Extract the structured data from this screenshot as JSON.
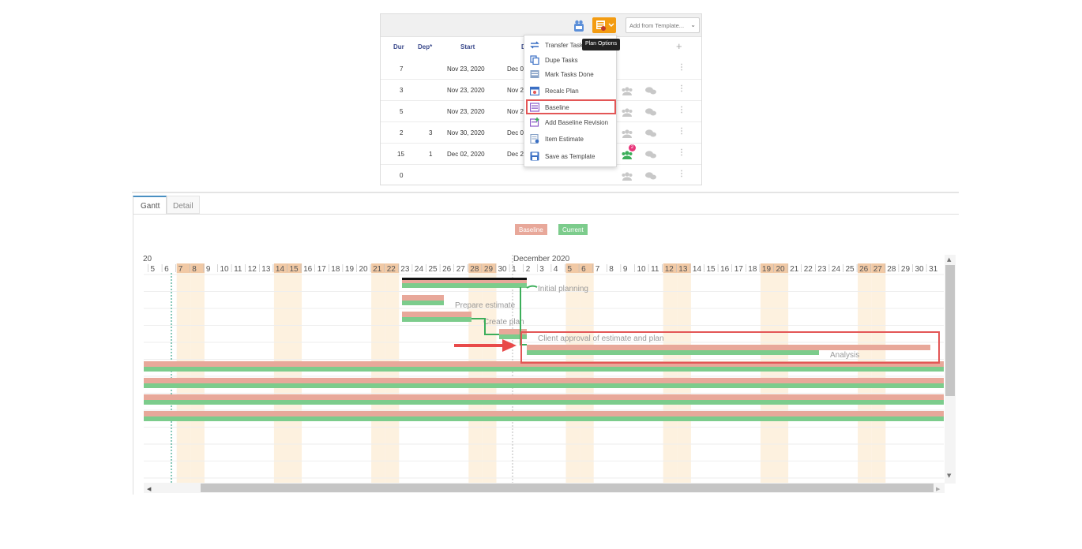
{
  "toolbar": {
    "template_placeholder": "Add from Template...",
    "tooltip": "Plan Options",
    "plan_button_color": "#f39c12"
  },
  "task_table": {
    "headers": [
      "Dur",
      "Dep*",
      "Start",
      "D"
    ],
    "add_icon": "plus-icon",
    "rows": [
      {
        "dur": "7",
        "dep": "",
        "start": "Nov 23, 2020",
        "end": "Dec 0",
        "people_badge": ""
      },
      {
        "dur": "3",
        "dep": "",
        "start": "Nov 23, 2020",
        "end": "Nov 2",
        "people_badge": ""
      },
      {
        "dur": "5",
        "dep": "",
        "start": "Nov 23, 2020",
        "end": "Nov 2",
        "people_badge": ""
      },
      {
        "dur": "2",
        "dep": "3",
        "start": "Nov 30, 2020",
        "end": "Dec 0",
        "people_badge": ""
      },
      {
        "dur": "15",
        "dep": "1",
        "start": "Dec 02, 2020",
        "end": "Dec 2",
        "people_badge": "2"
      },
      {
        "dur": "0",
        "dep": "",
        "start": "",
        "end": "",
        "people_badge": ""
      }
    ]
  },
  "plan_menu": {
    "items": [
      {
        "label": "Transfer Tasks",
        "icon": "transfer-icon"
      },
      {
        "label": "Dupe Tasks",
        "icon": "copy-icon"
      },
      {
        "label": "Mark Tasks Done",
        "icon": "check-list-icon"
      },
      {
        "label": "Recalc Plan",
        "icon": "calendar-icon"
      },
      {
        "label": "Baseline",
        "icon": "baseline-icon"
      },
      {
        "label": "Add Baseline Revision",
        "icon": "add-baseline-icon"
      },
      {
        "label": "Item Estimate",
        "icon": "estimate-icon"
      },
      {
        "label": "Save as Template",
        "icon": "save-icon"
      }
    ],
    "highlighted": "Baseline"
  },
  "tabs": [
    {
      "label": "Gantt",
      "active": true
    },
    {
      "label": "Detail",
      "active": false
    }
  ],
  "legend": {
    "baseline": "Baseline",
    "current": "Current",
    "baseline_color": "#e8a89a",
    "current_color": "#7ccc8c"
  },
  "gantt": {
    "left_fragment": "20",
    "month_label": "December 2020",
    "days_nov": [
      "5",
      "6",
      "7",
      "8",
      "9",
      "10",
      "11",
      "12",
      "13",
      "14",
      "15",
      "16",
      "17",
      "18",
      "19",
      "20",
      "21",
      "22",
      "23",
      "24",
      "25",
      "26",
      "27",
      "28",
      "29",
      "30"
    ],
    "days_dec": [
      "1",
      "2",
      "3",
      "4",
      "5",
      "6",
      "7",
      "8",
      "9",
      "10",
      "11",
      "12",
      "13",
      "14",
      "15",
      "16",
      "17",
      "18",
      "19",
      "20",
      "21",
      "22",
      "23",
      "24",
      "25",
      "26",
      "27",
      "28",
      "29",
      "30",
      "31"
    ],
    "weekend_days": [
      "7",
      "8",
      "14",
      "15",
      "21",
      "22",
      "28",
      "29",
      "5",
      "6",
      "12",
      "13",
      "19",
      "20",
      "26",
      "27"
    ],
    "tasks": [
      {
        "name": "Initial planning"
      },
      {
        "name": "Prepare estimate"
      },
      {
        "name": "Create plan"
      },
      {
        "name": "Client approval of estimate and plan"
      },
      {
        "name": "Analysis"
      }
    ]
  }
}
